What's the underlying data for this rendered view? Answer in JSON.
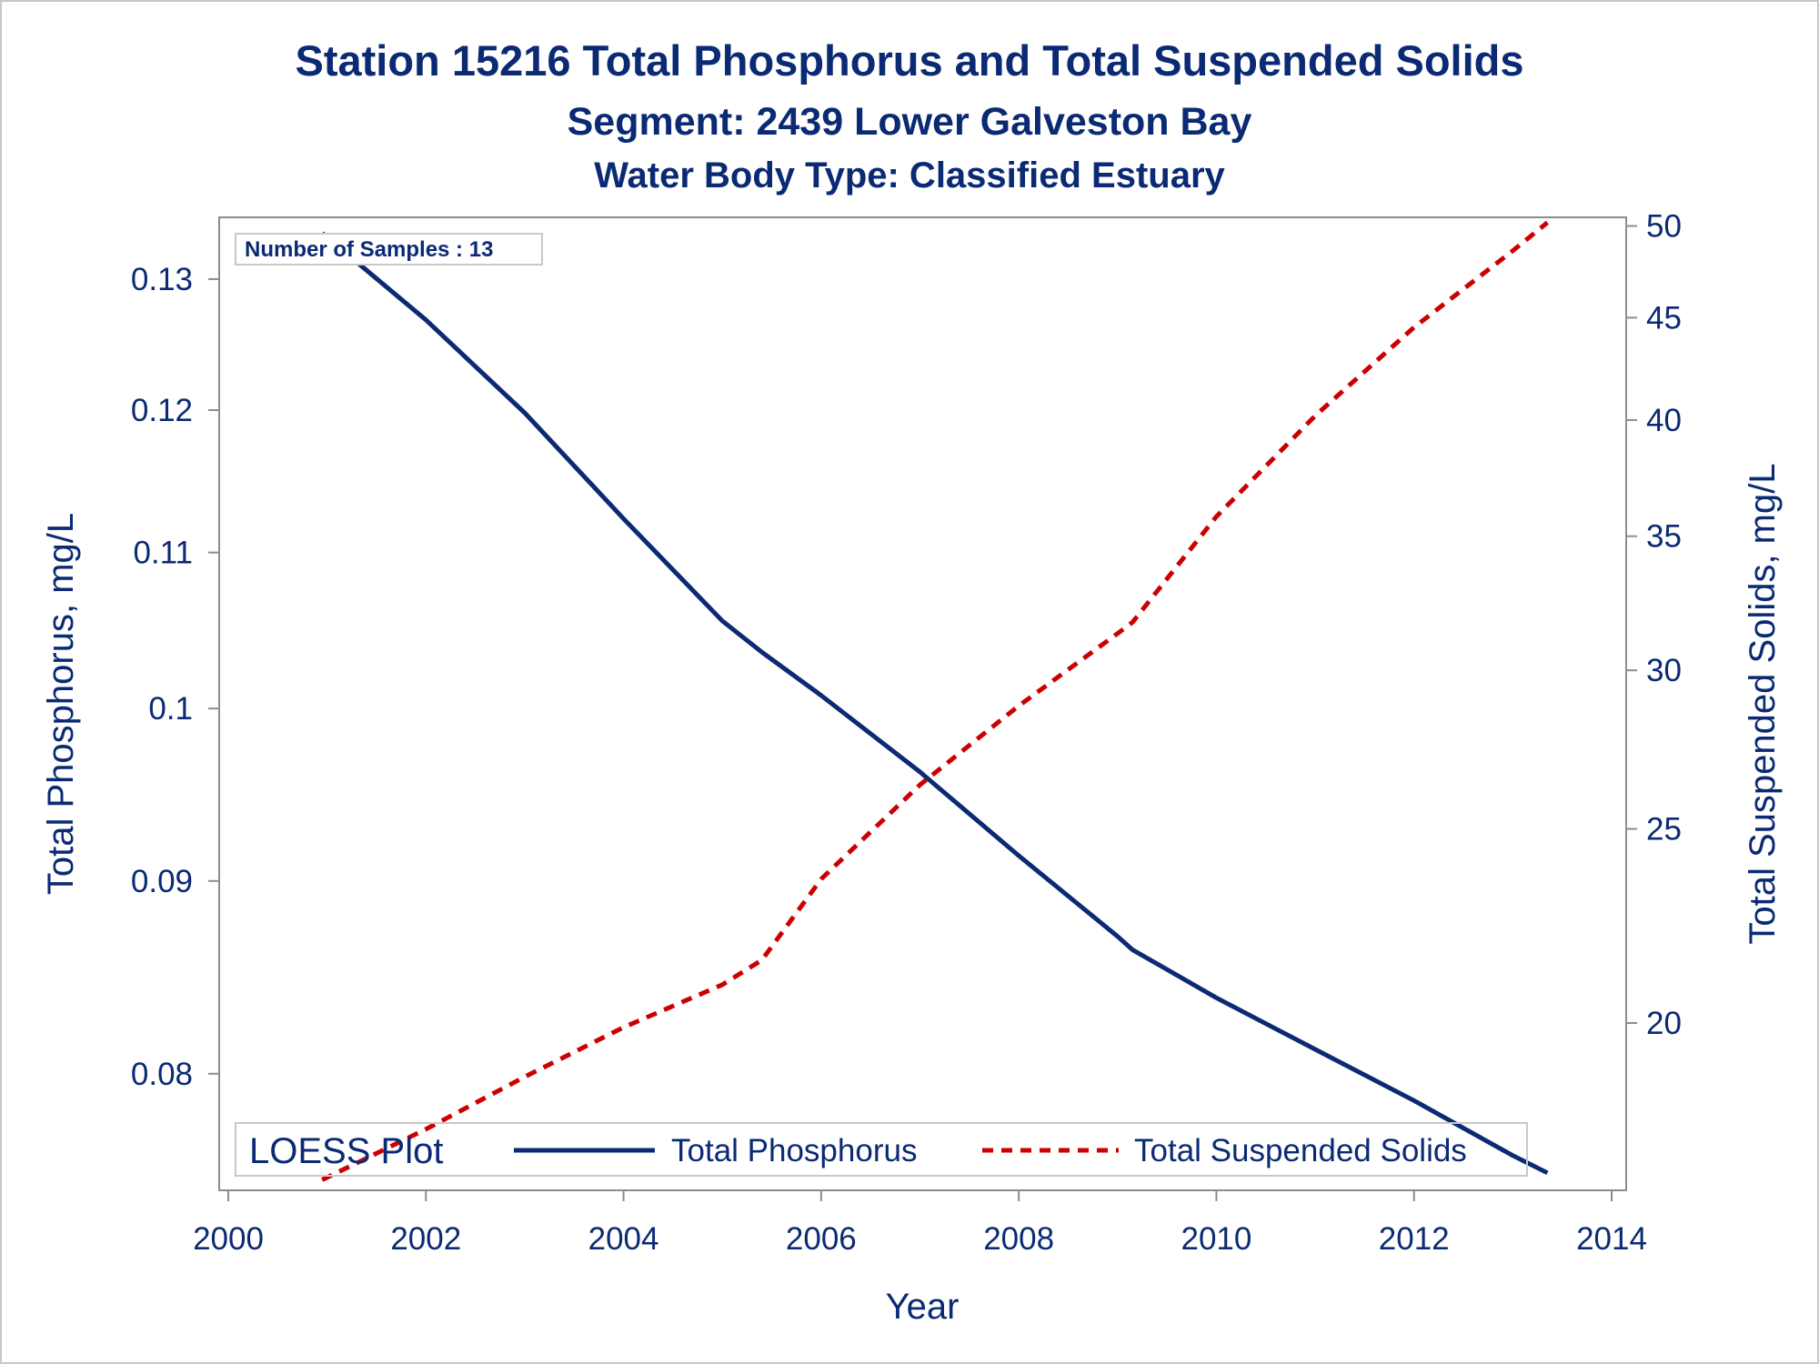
{
  "chart_data": {
    "type": "line",
    "title": "Station 15216  Total Phosphorus and Total Suspended Solids",
    "subtitle": "Segment: 2439  Lower Galveston Bay",
    "subtitle2": "Water Body Type: Classified Estuary",
    "xlabel": "Year",
    "ylabel": "Total Phosphorus, mg/L",
    "y2label": "Total Suspended Solids, mg/L",
    "xlim": [
      2000,
      2014
    ],
    "x_ticks": [
      2000,
      2002,
      2004,
      2006,
      2008,
      2010,
      2012,
      2014
    ],
    "ylim": [
      0.0745,
      0.135
    ],
    "y_scale": "log",
    "y_ticks": [
      0.08,
      0.09,
      0.1,
      0.11,
      0.12,
      0.13
    ],
    "y_tick_labels": [
      "0.08",
      "0.09",
      "0.1",
      "0.11",
      "0.12",
      "0.13"
    ],
    "y2lim": [
      16.5,
      50.5
    ],
    "y2_scale": "log",
    "y2_ticks": [
      20,
      25,
      30,
      35,
      40,
      45,
      50
    ],
    "grid": false,
    "legend_placement": "bottom-inside",
    "annotation": "Number of Samples : 13",
    "legend_title": "LOESS Plot",
    "series": [
      {
        "name": "Total Phosphorus",
        "axis": "left",
        "color": "#0b2a74",
        "style": "solid",
        "x": [
          2000.95,
          2002,
          2003,
          2004,
          2005,
          2005.4,
          2006,
          2007,
          2008,
          2009,
          2009.15,
          2010,
          2011,
          2012,
          2013,
          2013.35
        ],
        "y": [
          0.1337,
          0.1268,
          0.1198,
          0.1123,
          0.1055,
          0.1035,
          0.1008,
          0.0962,
          0.0914,
          0.087,
          0.0863,
          0.0838,
          0.0812,
          0.0787,
          0.0761,
          0.0753
        ]
      },
      {
        "name": "Total Suspended Solids",
        "axis": "right",
        "color": "#cc0000",
        "style": "dashed",
        "x": [
          2000.95,
          2002,
          2003,
          2004,
          2005,
          2005.4,
          2006,
          2007,
          2008,
          2009,
          2009.15,
          2010,
          2011,
          2012,
          2013,
          2013.35
        ],
        "y": [
          16.7,
          17.7,
          18.8,
          19.9,
          20.9,
          21.5,
          23.6,
          26.3,
          28.8,
          31.3,
          31.7,
          35.8,
          40.2,
          44.5,
          48.6,
          50.2
        ]
      }
    ]
  }
}
